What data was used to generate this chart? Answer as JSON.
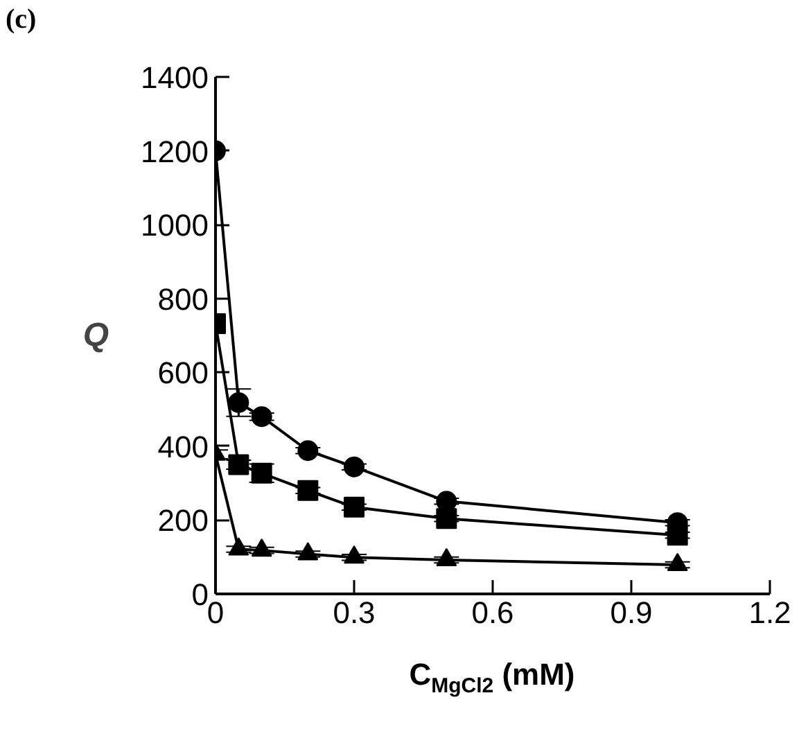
{
  "chart_data": {
    "type": "line",
    "title": "(c)",
    "xlabel": "C$_{MgCl2}$ (mM)",
    "ylabel": "Q",
    "x": [
      0,
      0.05,
      0.1,
      0.2,
      0.3,
      0.5,
      1.0
    ],
    "series": [
      {
        "color": "#000000",
        "marker": "circle",
        "values": [
          1200,
          518,
          480,
          388,
          344,
          251,
          193
        ],
        "errors": [
          null,
          37,
          10,
          8,
          8,
          8,
          8
        ]
      },
      {
        "color": "#000000",
        "marker": "square",
        "values": [
          732,
          350,
          327,
          280,
          235,
          204,
          159
        ],
        "errors": [
          null,
          12,
          25,
          8,
          8,
          8,
          8
        ]
      },
      {
        "color": "#000000",
        "marker": "triangle",
        "values": [
          378,
          121,
          118,
          108,
          99,
          92,
          79
        ],
        "errors": [
          12,
          8,
          8,
          8,
          8,
          8,
          8
        ]
      }
    ],
    "xlim": [
      0,
      1.2
    ],
    "xticks": [
      0,
      0.3,
      0.6,
      0.9,
      1.2
    ],
    "ylim": [
      0,
      1400
    ],
    "yticks": [
      0,
      200,
      400,
      600,
      800,
      1000,
      1200,
      1400
    ],
    "grid": false,
    "line_style": "solid"
  }
}
